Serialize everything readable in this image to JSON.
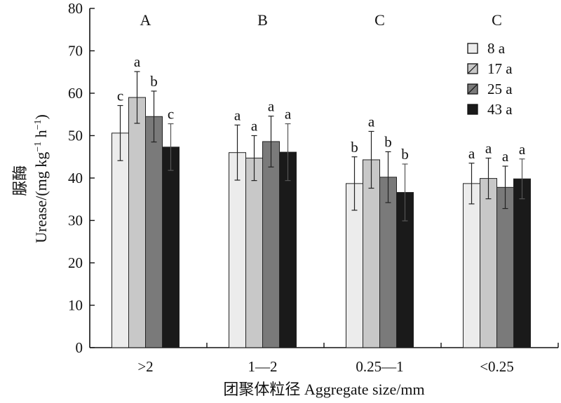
{
  "chart_data": {
    "type": "bar",
    "categories": [
      ">2",
      "1—2",
      "0.25—1",
      "<0.25"
    ],
    "group_letters": [
      "A",
      "B",
      "C",
      "C"
    ],
    "series": [
      {
        "name": "8 a",
        "color": "#ececec",
        "values": [
          50.6,
          46.0,
          38.7,
          38.7
        ],
        "errors": [
          6.5,
          6.5,
          6.3,
          4.8
        ],
        "letters": [
          "c",
          "a",
          "b",
          "a"
        ]
      },
      {
        "name": "17 a",
        "color": "#c8c8c8",
        "values": [
          59.0,
          44.7,
          44.3,
          39.9
        ],
        "errors": [
          6.1,
          5.3,
          6.7,
          4.8
        ],
        "letters": [
          "a",
          "a",
          "a",
          "a"
        ]
      },
      {
        "name": "25 a",
        "color": "#7a7a7a",
        "values": [
          54.5,
          48.6,
          40.2,
          37.8
        ],
        "errors": [
          6.0,
          6.0,
          6.0,
          5.0
        ],
        "letters": [
          "b",
          "a",
          "b",
          "a"
        ]
      },
      {
        "name": "43 a",
        "color": "#1a1a1a",
        "values": [
          47.3,
          46.1,
          36.6,
          39.8
        ],
        "errors": [
          5.5,
          6.7,
          6.7,
          4.7
        ],
        "letters": [
          "c",
          "a",
          "b",
          "a"
        ]
      }
    ],
    "ylim": [
      0,
      80
    ],
    "yticks": [
      0,
      10,
      20,
      30,
      40,
      50,
      60,
      70,
      80
    ],
    "ylabel_cn": "脲酶",
    "ylabel_en": "Urease/(mg kg",
    "ylabel_sup1": "−1",
    "ylabel_mid": " h",
    "ylabel_sup2": "−1",
    "ylabel_end": ")",
    "xlabel": "团聚体粒径 Aggregate size/mm",
    "legend_position": "top-right",
    "grid": false
  }
}
